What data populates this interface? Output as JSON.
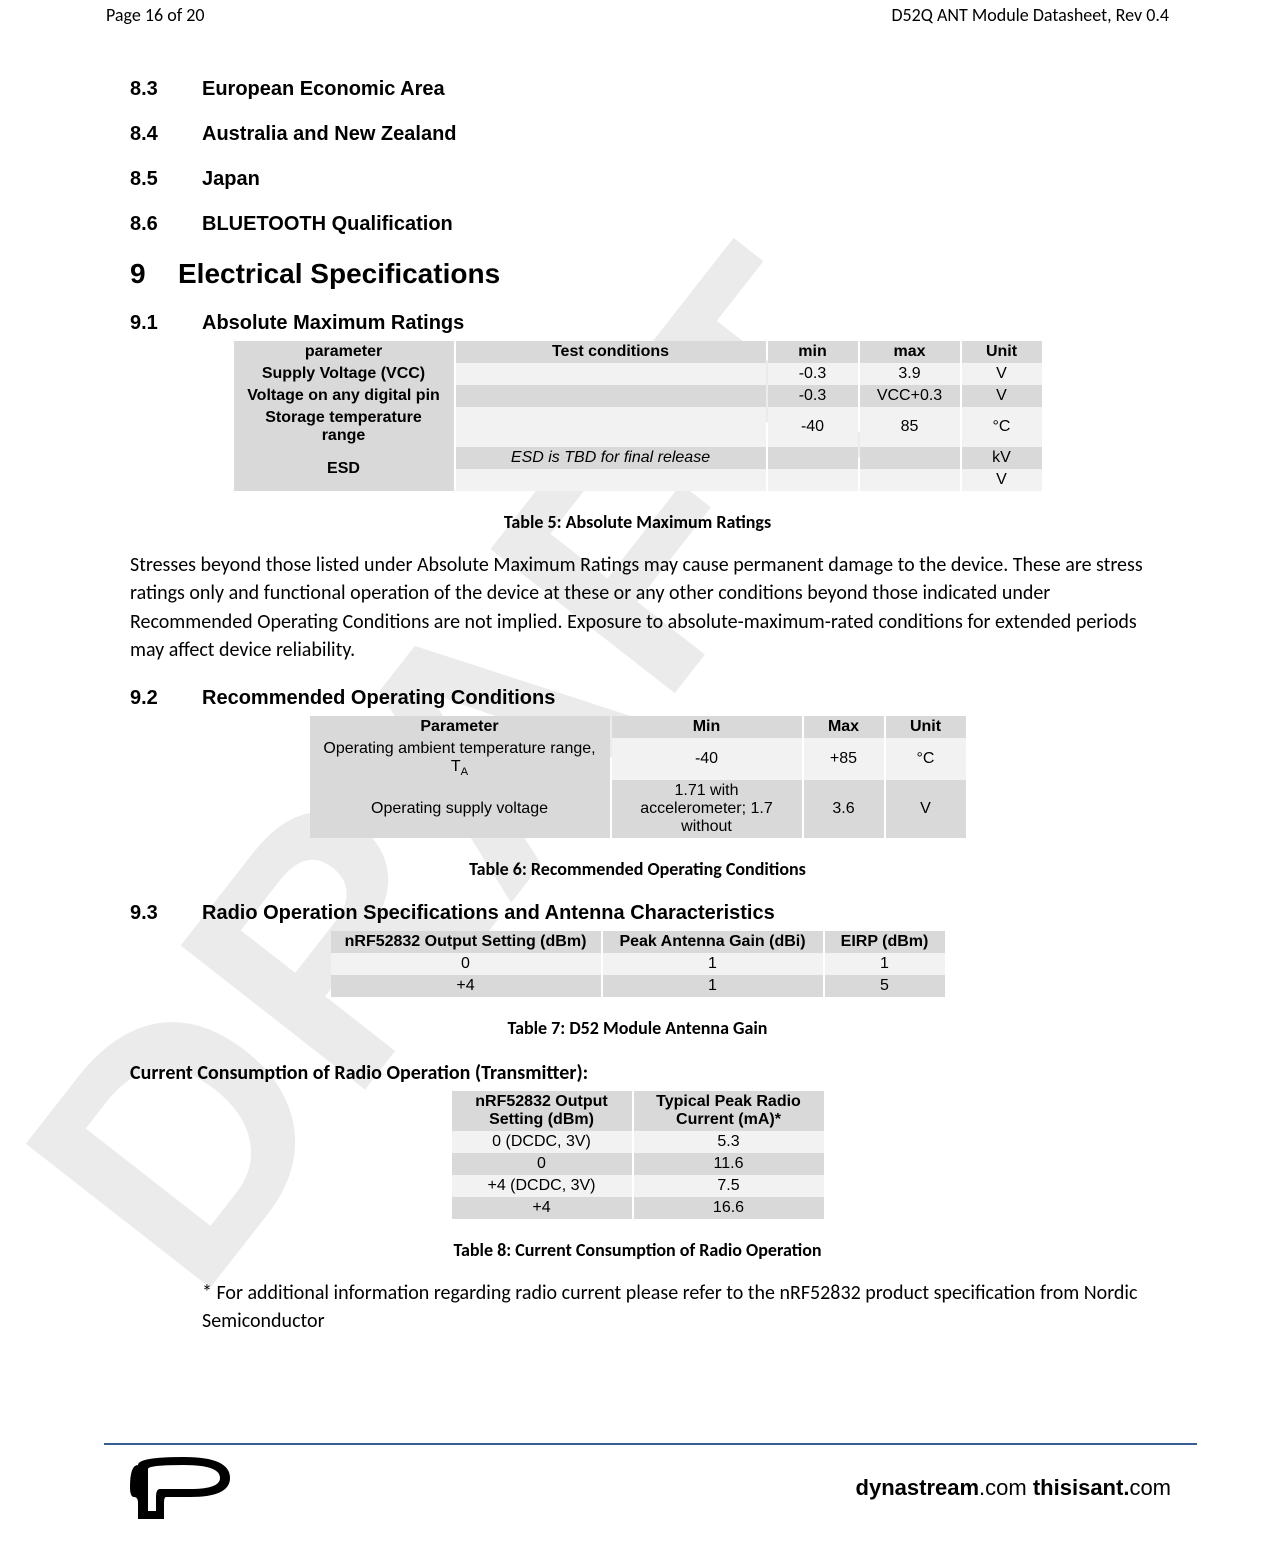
{
  "header": {
    "left": "Page 16 of 20",
    "right": "D52Q ANT Module Datasheet, Rev 0.4"
  },
  "sections": {
    "s83": {
      "num": "8.3",
      "title": "European Economic Area"
    },
    "s84": {
      "num": "8.4",
      "title": "Australia and New Zealand"
    },
    "s85": {
      "num": "8.5",
      "title": "Japan"
    },
    "s86": {
      "num": "8.6",
      "title": "BLUETOOTH Qualification"
    },
    "s9": {
      "num": "9",
      "title": "Electrical Specifications"
    },
    "s91": {
      "num": "9.1",
      "title": "Absolute Maximum Ratings"
    },
    "s92": {
      "num": "9.2",
      "title": "Recommended Operating Conditions"
    },
    "s93": {
      "num": "9.3",
      "title": "Radio Operation Specifications and Antenna Characteristics"
    }
  },
  "table5": {
    "headers": [
      "parameter",
      "Test conditions",
      "min",
      "max",
      "Unit"
    ],
    "rows": [
      {
        "param": "Supply Voltage (VCC)",
        "cond": "",
        "min": "-0.3",
        "max": "3.9",
        "unit": "V",
        "shade": "light"
      },
      {
        "param": "Voltage on any digital pin",
        "cond": "",
        "min": "-0.3",
        "max": "VCC+0.3",
        "unit": "V",
        "shade": "dark"
      },
      {
        "param": "Storage temperature range",
        "cond": "",
        "min": "-40",
        "max": "85",
        "unit": "°C",
        "shade": "light"
      },
      {
        "param": "ESD",
        "rowspan": 2,
        "cond": "ESD is TBD for final release",
        "cond_italic": true,
        "min": "",
        "max": "",
        "unit": "kV",
        "shade": "dark"
      },
      {
        "cond": "",
        "min": "",
        "max": "",
        "unit": "V",
        "shade": "light"
      }
    ],
    "caption": "Table 5: Absolute Maximum Ratings",
    "para": "Stresses beyond those listed under Absolute Maximum Ratings may cause permanent damage to the device. These are stress ratings only and functional operation of the device at these or any other conditions beyond those indicated under Recommended Operating Conditions are not implied. Exposure to absolute-maximum-rated conditions for extended periods may affect device reliability."
  },
  "table6": {
    "headers": [
      "Parameter",
      "Min",
      "Max",
      "Unit"
    ],
    "rows": [
      {
        "param_pre": "Operating ambient temperature range, T",
        "param_sub": "A",
        "min": "-40",
        "max": "+85",
        "unit": "°C",
        "shade": "light"
      },
      {
        "param": "Operating supply voltage",
        "min": "1.71 with accelerometer; 1.7 without",
        "max": "3.6",
        "unit": "V",
        "shade": "dark"
      }
    ],
    "caption": "Table 6: Recommended Operating Conditions"
  },
  "table7": {
    "headers": [
      "nRF52832 Output Setting (dBm)",
      "Peak Antenna Gain (dBi)",
      "EIRP (dBm)"
    ],
    "rows": [
      {
        "c1": "0",
        "c2": "1",
        "c3": "1",
        "shade": "light"
      },
      {
        "c1": "+4",
        "c2": "1",
        "c3": "5",
        "shade": "dark"
      }
    ],
    "caption": "Table 7: D52 Module Antenna Gain"
  },
  "tx_heading": "Current Consumption of Radio Operation (Transmitter):",
  "table8": {
    "headers": [
      "nRF52832 Output Setting (dBm)",
      "Typical Peak Radio Current (mA)*"
    ],
    "rows": [
      {
        "c1": "0 (DCDC, 3V)",
        "c2": "5.3",
        "shade": "light"
      },
      {
        "c1": "0",
        "c2": "11.6",
        "shade": "dark"
      },
      {
        "c1": "+4 (DCDC, 3V)",
        "c2": "7.5",
        "shade": "light"
      },
      {
        "c1": "+4",
        "c2": "16.6",
        "shade": "dark"
      }
    ],
    "caption": "Table 8: Current Consumption of Radio Operation"
  },
  "footnote": "* For additional information regarding radio current please refer to the nRF52832 product specification from Nordic Semiconductor",
  "footer": {
    "brand1_bold": "dynastream",
    "brand1_lite": ".com",
    "brand2_bold": "thisisant.",
    "brand2_lite": "com"
  },
  "watermark": {
    "color": "#e6e6e6",
    "accent": "#365f91"
  }
}
